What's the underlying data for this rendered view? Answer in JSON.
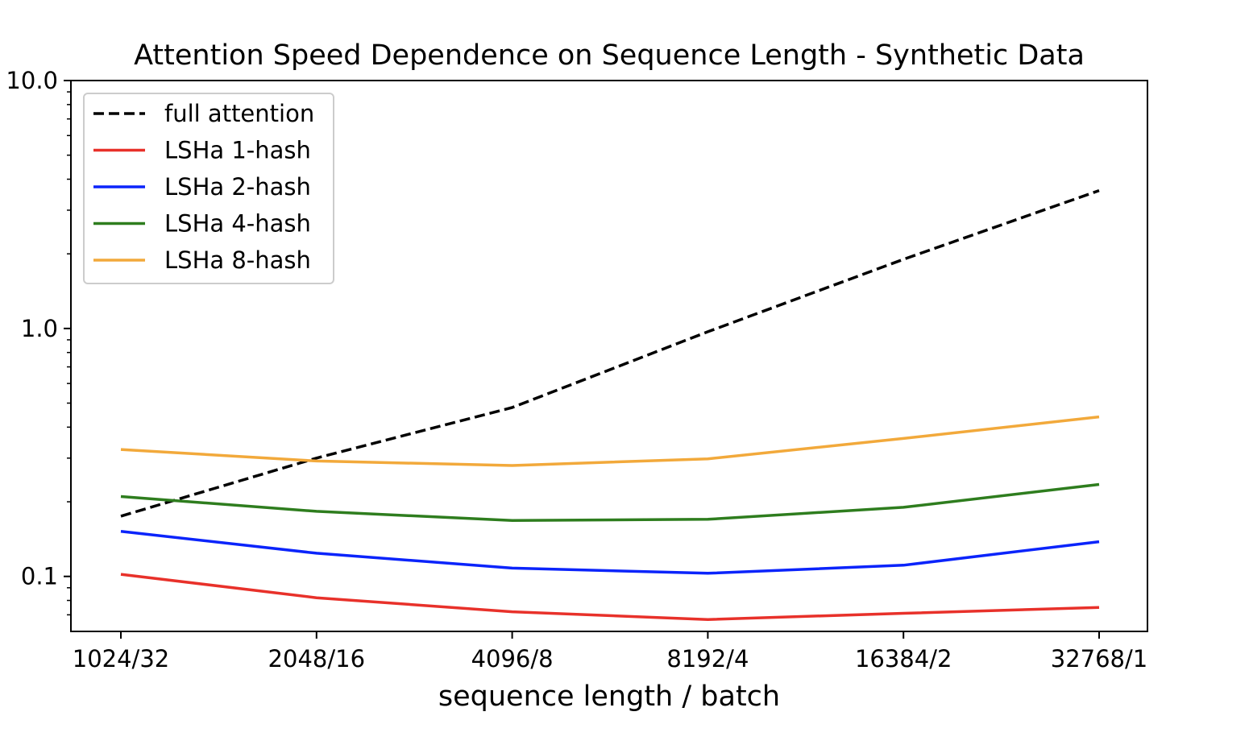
{
  "chart_data": {
    "type": "line",
    "title": "Attention Speed Dependence on Sequence Length - Synthetic Data",
    "xlabel": "sequence length / batch",
    "ylabel": "",
    "yscale": "log",
    "ylim": [
      0.06,
      10.0
    ],
    "yticks": [
      {
        "value": 10.0,
        "label": "10.0"
      },
      {
        "value": 1.0,
        "label": "1.0"
      },
      {
        "value": 0.1,
        "label": "0.1"
      }
    ],
    "categories": [
      "1024/32",
      "2048/16",
      "4096/8",
      "8192/4",
      "16384/2",
      "32768/1"
    ],
    "legend_position": "top-left",
    "series": [
      {
        "name": "full attention",
        "color": "#000000",
        "dash": "dashed",
        "values": [
          0.175,
          0.3,
          0.48,
          0.97,
          1.9,
          3.6
        ]
      },
      {
        "name": "LSHa 1-hash",
        "color": "#e8312a",
        "dash": "solid",
        "values": [
          0.102,
          0.082,
          0.072,
          0.067,
          0.071,
          0.075
        ]
      },
      {
        "name": "LSHa 2-hash",
        "color": "#0b24fb",
        "dash": "solid",
        "values": [
          0.152,
          0.124,
          0.108,
          0.103,
          0.111,
          0.138
        ]
      },
      {
        "name": "LSHa 4-hash",
        "color": "#2e7d1e",
        "dash": "solid",
        "values": [
          0.21,
          0.183,
          0.168,
          0.17,
          0.19,
          0.235
        ]
      },
      {
        "name": "LSHa 8-hash",
        "color": "#f2a93b",
        "dash": "solid",
        "values": [
          0.325,
          0.292,
          0.28,
          0.298,
          0.36,
          0.44
        ]
      }
    ]
  }
}
